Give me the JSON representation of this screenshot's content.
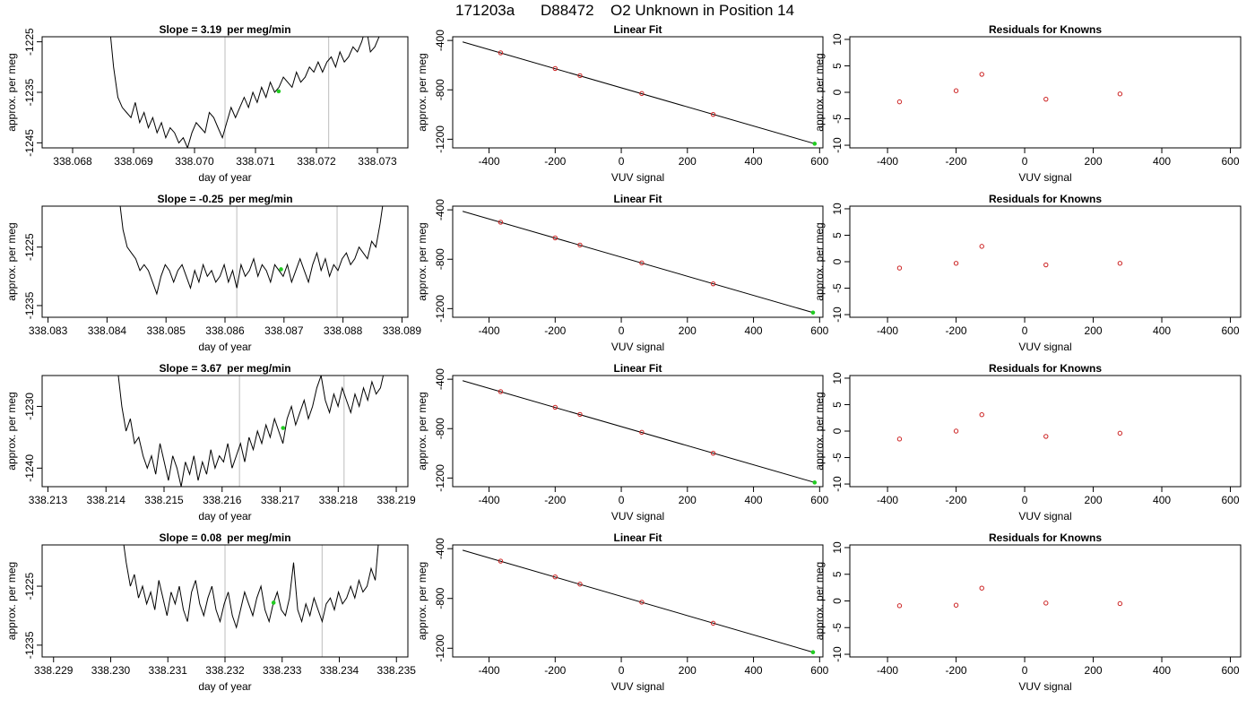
{
  "title": {
    "run": "171203a",
    "tank": "D88472",
    "desc": "O2 Unknown in Position  14"
  },
  "colors": {
    "trace": "#000000",
    "vline": "#c8c8c8",
    "green": "#22cc22",
    "red": "#cc2222",
    "fit_line": "#000000"
  },
  "chart_data": [
    {
      "id": "time-1",
      "type": "line",
      "title_prefix": "Slope = ",
      "slope": "3.19",
      "slope_unit": "per meg/min",
      "xlabel": "day of year",
      "ylabel": "approx. per meg",
      "xlim": [
        338.0675,
        338.0735
      ],
      "ylim": [
        -1246,
        -1224
      ],
      "xticks": [
        "338.068",
        "338.069",
        "338.070",
        "338.071",
        "338.072",
        "338.073"
      ],
      "yticks": [
        "-1225",
        "-1235",
        "-1245"
      ],
      "window": [
        338.0705,
        338.0722
      ],
      "unknown_point": {
        "x": 338.07138,
        "y": -1234.8
      },
      "trace": {
        "x_start": 338.0686,
        "x_end": 338.0731,
        "y": [
          -1221,
          -1230,
          -1236,
          -1238,
          -1239,
          -1240,
          -1237,
          -1241,
          -1239,
          -1242,
          -1240,
          -1243,
          -1241,
          -1244,
          -1242,
          -1243,
          -1245,
          -1244,
          -1246,
          -1243,
          -1241,
          -1242,
          -1243,
          -1239,
          -1240,
          -1242,
          -1244,
          -1241,
          -1238,
          -1240,
          -1238,
          -1236,
          -1238,
          -1235,
          -1237,
          -1234,
          -1236,
          -1233,
          -1235,
          -1234,
          -1232,
          -1233,
          -1234,
          -1231,
          -1233,
          -1232,
          -1230,
          -1231,
          -1229,
          -1231,
          -1229,
          -1228,
          -1230,
          -1227,
          -1229,
          -1228,
          -1226,
          -1227,
          -1225,
          -1222,
          -1227,
          -1226,
          -1224,
          -1220
        ]
      }
    },
    {
      "id": "fit-1",
      "type": "line",
      "title": "Linear Fit",
      "xlabel": "VUV signal",
      "ylabel": "approx. per meg",
      "xlim": [
        -510,
        610
      ],
      "ylim": [
        -1270,
        -370
      ],
      "xticks": [
        "-400",
        "-200",
        "0",
        "200",
        "400",
        "600"
      ],
      "yticks": [
        "-400",
        "-800",
        "-1200"
      ],
      "line": {
        "x": [
          -480,
          585
        ],
        "y": [
          -412,
          -1236
        ]
      },
      "knowns": {
        "x": [
          -365,
          -200,
          -125,
          62,
          278
        ],
        "y": [
          -500,
          -627,
          -685,
          -830,
          -999
        ]
      },
      "unknown": {
        "x": 585,
        "y": -1236
      }
    },
    {
      "id": "res-1",
      "type": "scatter",
      "title": "Residuals for Knowns",
      "xlabel": "VUV signal",
      "ylabel": "approx. per meg",
      "xlim": [
        -510,
        630
      ],
      "ylim": [
        -10.5,
        10.5
      ],
      "xticks": [
        "-400",
        "-200",
        "0",
        "200",
        "400",
        "600"
      ],
      "yticks": [
        "10",
        "5",
        "0",
        "-5",
        "-10"
      ],
      "points": {
        "x": [
          -365,
          -200,
          -125,
          62,
          278
        ],
        "y": [
          -1.8,
          0.3,
          3.4,
          -1.3,
          -0.3
        ]
      }
    },
    {
      "id": "time-2",
      "type": "line",
      "title_prefix": "Slope = ",
      "slope": "-0.25",
      "slope_unit": "per meg/min",
      "xlabel": "day of year",
      "ylabel": "approx. per meg",
      "xlim": [
        338.0829,
        338.0891
      ],
      "ylim": [
        -1237,
        -1218
      ],
      "xticks": [
        "338.083",
        "338.084",
        "338.085",
        "338.086",
        "338.087",
        "338.088",
        "338.089"
      ],
      "yticks": [
        "-1225",
        "-1235"
      ],
      "window": [
        338.0862,
        338.0879
      ],
      "unknown_point": {
        "x": 338.08695,
        "y": -1228.8
      },
      "trace": {
        "x_start": 338.0842,
        "x_end": 338.0887,
        "y": [
          -1216,
          -1222,
          -1225,
          -1226,
          -1227,
          -1229,
          -1228,
          -1229,
          -1231,
          -1233,
          -1230,
          -1228,
          -1229,
          -1231,
          -1229,
          -1228,
          -1230,
          -1232,
          -1229,
          -1231,
          -1228,
          -1230,
          -1229,
          -1231,
          -1230,
          -1228,
          -1231,
          -1229,
          -1232,
          -1228,
          -1230,
          -1229,
          -1227,
          -1230,
          -1228,
          -1229,
          -1231,
          -1228,
          -1229,
          -1230,
          -1228,
          -1231,
          -1229,
          -1227,
          -1229,
          -1231,
          -1228,
          -1226,
          -1229,
          -1227,
          -1230,
          -1228,
          -1229,
          -1227,
          -1226,
          -1228,
          -1227,
          -1225,
          -1226,
          -1227,
          -1224,
          -1225,
          -1221,
          -1216
        ]
      }
    },
    {
      "id": "fit-2",
      "type": "line",
      "title": "Linear Fit",
      "xlabel": "VUV signal",
      "ylabel": "approx. per meg",
      "xlim": [
        -510,
        610
      ],
      "ylim": [
        -1270,
        -370
      ],
      "xticks": [
        "-400",
        "-200",
        "0",
        "200",
        "400",
        "600"
      ],
      "yticks": [
        "-400",
        "-800",
        "-1200"
      ],
      "line": {
        "x": [
          -480,
          580
        ],
        "y": [
          -412,
          -1232
        ]
      },
      "knowns": {
        "x": [
          -365,
          -200,
          -125,
          62,
          278
        ],
        "y": [
          -500,
          -627,
          -685,
          -830,
          -999
        ]
      },
      "unknown": {
        "x": 580,
        "y": -1232
      }
    },
    {
      "id": "res-2",
      "type": "scatter",
      "title": "Residuals for Knowns",
      "xlabel": "VUV signal",
      "ylabel": "approx. per meg",
      "xlim": [
        -510,
        630
      ],
      "ylim": [
        -10.5,
        10.5
      ],
      "xticks": [
        "-400",
        "-200",
        "0",
        "200",
        "400",
        "600"
      ],
      "yticks": [
        "10",
        "5",
        "0",
        "-5",
        "-10"
      ],
      "points": {
        "x": [
          -365,
          -200,
          -125,
          62,
          278
        ],
        "y": [
          -1.2,
          -0.3,
          2.9,
          -0.6,
          -0.3
        ]
      }
    },
    {
      "id": "time-3",
      "type": "line",
      "title_prefix": "Slope = ",
      "slope": "3.67",
      "slope_unit": "per meg/min",
      "xlabel": "day of year",
      "ylabel": "approx. per meg",
      "xlim": [
        338.2129,
        338.2192
      ],
      "ylim": [
        -1243,
        -1225
      ],
      "xticks": [
        "338.213",
        "338.214",
        "338.215",
        "338.216",
        "338.217",
        "338.218",
        "338.219"
      ],
      "yticks": [
        "-1230",
        "-1240"
      ],
      "window": [
        338.2163,
        338.2181
      ],
      "unknown_point": {
        "x": 338.21705,
        "y": -1233.5
      },
      "trace": {
        "x_start": 338.2142,
        "x_end": 338.2188,
        "y": [
          -1224,
          -1230,
          -1234,
          -1232,
          -1236,
          -1235,
          -1238,
          -1240,
          -1238,
          -1241,
          -1236,
          -1239,
          -1242,
          -1238,
          -1240,
          -1243,
          -1239,
          -1241,
          -1238,
          -1242,
          -1239,
          -1241,
          -1237,
          -1240,
          -1238,
          -1239,
          -1236,
          -1240,
          -1238,
          -1236,
          -1239,
          -1235,
          -1237,
          -1234,
          -1236,
          -1233,
          -1235,
          -1232,
          -1234,
          -1236,
          -1232,
          -1230,
          -1233,
          -1231,
          -1229,
          -1232,
          -1230,
          -1227,
          -1225,
          -1229,
          -1231,
          -1228,
          -1230,
          -1227,
          -1229,
          -1231,
          -1228,
          -1230,
          -1227,
          -1229,
          -1226,
          -1228,
          -1227,
          -1224
        ]
      }
    },
    {
      "id": "fit-3",
      "type": "line",
      "title": "Linear Fit",
      "xlabel": "VUV signal",
      "ylabel": "approx. per meg",
      "xlim": [
        -510,
        610
      ],
      "ylim": [
        -1270,
        -370
      ],
      "xticks": [
        "-400",
        "-200",
        "0",
        "200",
        "400",
        "600"
      ],
      "yticks": [
        "-400",
        "-800",
        "-1200"
      ],
      "line": {
        "x": [
          -480,
          585
        ],
        "y": [
          -412,
          -1236
        ]
      },
      "knowns": {
        "x": [
          -365,
          -200,
          -125,
          62,
          278
        ],
        "y": [
          -500,
          -627,
          -685,
          -830,
          -999
        ]
      },
      "unknown": {
        "x": 585,
        "y": -1236
      }
    },
    {
      "id": "res-3",
      "type": "scatter",
      "title": "Residuals for Knowns",
      "xlabel": "VUV signal",
      "ylabel": "approx. per meg",
      "xlim": [
        -510,
        630
      ],
      "ylim": [
        -10.5,
        10.5
      ],
      "xticks": [
        "-400",
        "-200",
        "0",
        "200",
        "400",
        "600"
      ],
      "yticks": [
        "10",
        "5",
        "0",
        "-5",
        "-10"
      ],
      "points": {
        "x": [
          -365,
          -200,
          -125,
          62,
          278
        ],
        "y": [
          -1.5,
          0.0,
          3.1,
          -1.0,
          -0.4
        ]
      }
    },
    {
      "id": "time-4",
      "type": "line",
      "title_prefix": "Slope = ",
      "slope": "0.08",
      "slope_unit": "per meg/min",
      "xlabel": "day of year",
      "ylabel": "approx. per meg",
      "xlim": [
        338.2288,
        338.2352
      ],
      "ylim": [
        -1237,
        -1218
      ],
      "xticks": [
        "338.229",
        "338.230",
        "338.231",
        "338.232",
        "338.233",
        "338.234",
        "338.235"
      ],
      "yticks": [
        "-1225",
        "-1235"
      ],
      "window": [
        338.232,
        338.2337
      ],
      "unknown_point": {
        "x": 338.23285,
        "y": -1227.8
      },
      "trace": {
        "x_start": 338.2302,
        "x_end": 338.2347,
        "y": [
          -1216,
          -1221,
          -1225,
          -1223,
          -1227,
          -1225,
          -1228,
          -1226,
          -1229,
          -1224,
          -1227,
          -1230,
          -1226,
          -1228,
          -1225,
          -1229,
          -1231,
          -1226,
          -1224,
          -1228,
          -1230,
          -1227,
          -1225,
          -1229,
          -1231,
          -1228,
          -1226,
          -1230,
          -1232,
          -1229,
          -1226,
          -1228,
          -1230,
          -1227,
          -1225,
          -1229,
          -1231,
          -1228,
          -1226,
          -1229,
          -1230,
          -1227,
          -1221,
          -1229,
          -1231,
          -1228,
          -1230,
          -1227,
          -1229,
          -1231,
          -1228,
          -1227,
          -1229,
          -1226,
          -1228,
          -1227,
          -1225,
          -1227,
          -1224,
          -1226,
          -1225,
          -1222,
          -1224,
          -1216
        ]
      }
    },
    {
      "id": "fit-4",
      "type": "line",
      "title": "Linear Fit",
      "xlabel": "VUV signal",
      "ylabel": "approx. per meg",
      "xlim": [
        -510,
        610
      ],
      "ylim": [
        -1270,
        -370
      ],
      "xticks": [
        "-400",
        "-200",
        "0",
        "200",
        "400",
        "600"
      ],
      "yticks": [
        "-400",
        "-800",
        "-1200"
      ],
      "line": {
        "x": [
          -480,
          580
        ],
        "y": [
          -412,
          -1232
        ]
      },
      "knowns": {
        "x": [
          -365,
          -200,
          -125,
          62,
          278
        ],
        "y": [
          -500,
          -627,
          -685,
          -830,
          -999
        ]
      },
      "unknown": {
        "x": 580,
        "y": -1232
      }
    },
    {
      "id": "res-4",
      "type": "scatter",
      "title": "Residuals for Knowns",
      "xlabel": "VUV signal",
      "ylabel": "approx. per meg",
      "xlim": [
        -510,
        630
      ],
      "ylim": [
        -10.5,
        10.5
      ],
      "xticks": [
        "-400",
        "-200",
        "0",
        "200",
        "400",
        "600"
      ],
      "yticks": [
        "10",
        "5",
        "0",
        "-5",
        "-10"
      ],
      "points": {
        "x": [
          -365,
          -200,
          -125,
          62,
          278
        ],
        "y": [
          -0.9,
          -0.8,
          2.4,
          -0.4,
          -0.5
        ]
      }
    }
  ]
}
